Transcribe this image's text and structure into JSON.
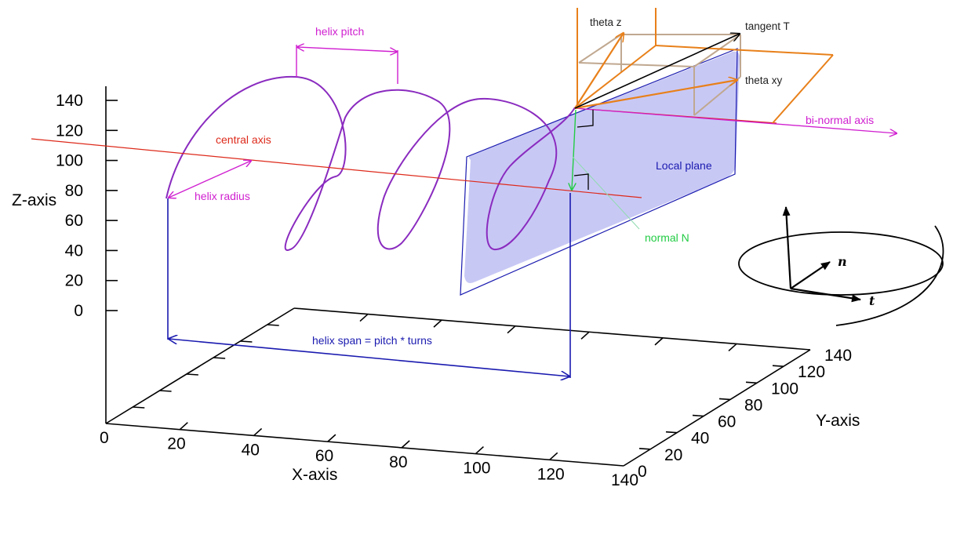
{
  "axes": {
    "x_title": "X-axis",
    "y_title": "Y-axis",
    "z_title": "Z-axis",
    "x_ticks": [
      "0",
      "20",
      "40",
      "60",
      "80",
      "100",
      "120",
      "140"
    ],
    "y_ticks": [
      "0",
      "20",
      "40",
      "60",
      "80",
      "100",
      "120",
      "140"
    ],
    "z_ticks": [
      "0",
      "20",
      "40",
      "60",
      "80",
      "100",
      "120",
      "140"
    ]
  },
  "labels": {
    "helix_pitch": "helix pitch",
    "central_axis": "central axis",
    "helix_radius": "helix radius",
    "helix_span": "helix span = pitch * turns",
    "local_plane": "Local plane",
    "normal": "normal N",
    "binormal": "bi-normal axis",
    "tangent": "tangent T",
    "theta_z": "theta z",
    "theta_xy": "theta xy"
  },
  "inset": {
    "n_label": "n",
    "t_label": "t"
  },
  "colors": {
    "helix": "#8a2bbf",
    "annotation_magenta": "#d020d0",
    "central_axis": "#dd2a1b",
    "span_blue": "#1a1ab0",
    "plane_fill": "#c8c8f5",
    "normal_green": "#22cc44",
    "tangent_orange": "#e8801a",
    "box_tan": "#c0a890"
  }
}
